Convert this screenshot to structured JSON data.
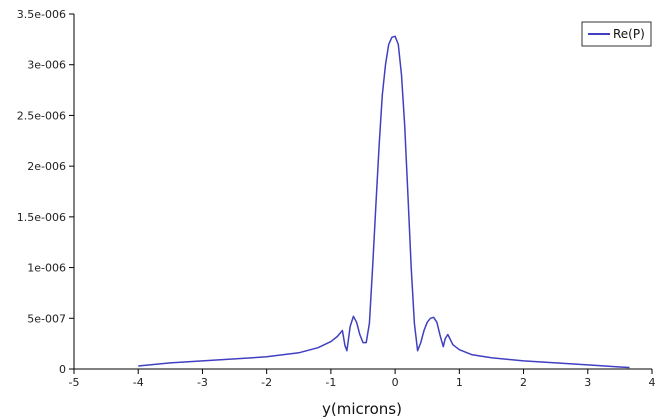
{
  "chart_data": {
    "type": "line",
    "title": "",
    "xlabel": "y(microns)",
    "ylabel": "",
    "xlim": [
      -5,
      4
    ],
    "ylim": [
      0,
      3.5e-06
    ],
    "x_ticks": [
      -5,
      -4,
      -3,
      -2,
      -1,
      0,
      1,
      2,
      3,
      4
    ],
    "x_tick_labels": [
      "-5",
      "-4",
      "-3",
      "-2",
      "-1",
      "0",
      "1",
      "2",
      "3",
      "4"
    ],
    "y_ticks": [
      0,
      5e-07,
      1e-06,
      1.5e-06,
      2e-06,
      2.5e-06,
      3e-06,
      3.5e-06
    ],
    "y_tick_labels": [
      "0",
      "5e-007",
      "1e-006",
      "1.5e-006",
      "2e-006",
      "2.5e-006",
      "3e-006",
      "3.5e-006"
    ],
    "grid": false,
    "legend": {
      "position": "top-right",
      "entries": [
        "Re(P)"
      ]
    },
    "series": [
      {
        "name": "Re(P)",
        "color": "#4040c0",
        "x": [
          -4.0,
          -3.5,
          -3.0,
          -2.5,
          -2.0,
          -1.5,
          -1.2,
          -1.0,
          -0.9,
          -0.82,
          -0.78,
          -0.75,
          -0.7,
          -0.65,
          -0.6,
          -0.55,
          -0.5,
          -0.45,
          -0.4,
          -0.35,
          -0.3,
          -0.25,
          -0.2,
          -0.15,
          -0.1,
          -0.05,
          0.0,
          0.05,
          0.1,
          0.15,
          0.2,
          0.25,
          0.3,
          0.35,
          0.4,
          0.45,
          0.5,
          0.55,
          0.6,
          0.65,
          0.7,
          0.75,
          0.78,
          0.82,
          0.9,
          1.0,
          1.2,
          1.5,
          2.0,
          2.5,
          3.0,
          3.5,
          3.65
        ],
        "y": [
          3e-08,
          6e-08,
          8e-08,
          1e-07,
          1.2e-07,
          1.6e-07,
          2.1e-07,
          2.7e-07,
          3.2e-07,
          3.8e-07,
          2.3e-07,
          1.8e-07,
          4.2e-07,
          5.2e-07,
          4.6e-07,
          3.4e-07,
          2.6e-07,
          2.6e-07,
          4.5e-07,
          1e-06,
          1.6e-06,
          2.2e-06,
          2.7e-06,
          3e-06,
          3.2e-06,
          3.27e-06,
          3.28e-06,
          3.2e-06,
          2.9e-06,
          2.4e-06,
          1.7e-06,
          1e-06,
          4.5e-07,
          1.8e-07,
          2.6e-07,
          3.8e-07,
          4.6e-07,
          5e-07,
          5.1e-07,
          4.6e-07,
          3.3e-07,
          2.2e-07,
          3e-07,
          3.4e-07,
          2.4e-07,
          1.9e-07,
          1.4e-07,
          1.1e-07,
          8e-08,
          6e-08,
          4e-08,
          2e-08,
          1.5e-08
        ]
      }
    ]
  }
}
